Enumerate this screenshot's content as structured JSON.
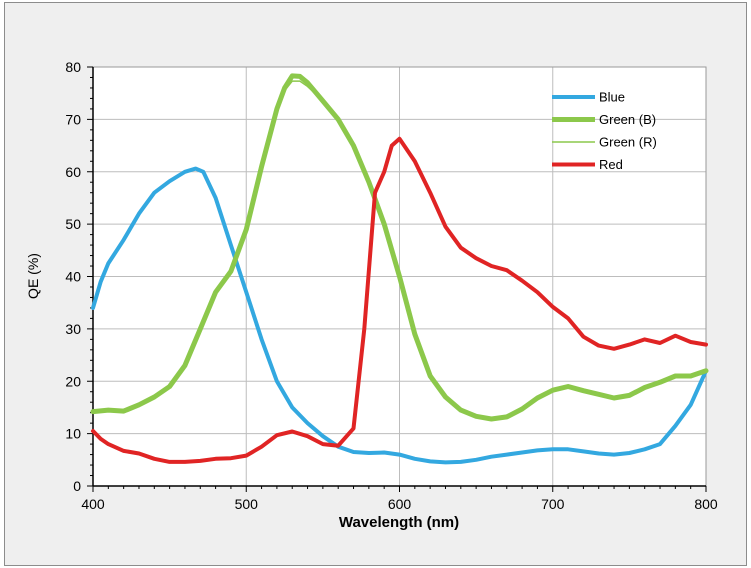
{
  "chart_data": {
    "type": "line",
    "title": "",
    "xlabel": "Wavelength (nm)",
    "ylabel": "QE (%)",
    "xlim": [
      400,
      800
    ],
    "ylim": [
      0,
      80
    ],
    "xticks": [
      400,
      500,
      600,
      700,
      800
    ],
    "yticks": [
      0,
      10,
      20,
      30,
      40,
      50,
      60,
      70,
      80
    ],
    "grid": true,
    "legend_position": "top-right",
    "series": [
      {
        "name": "Blue",
        "color": "#33a8e0",
        "width": 4,
        "points": [
          [
            400,
            34
          ],
          [
            405,
            39
          ],
          [
            410,
            42.5
          ],
          [
            420,
            47
          ],
          [
            430,
            52
          ],
          [
            440,
            56
          ],
          [
            450,
            58.2
          ],
          [
            460,
            60
          ],
          [
            467,
            60.6
          ],
          [
            472,
            60
          ],
          [
            480,
            55
          ],
          [
            490,
            46
          ],
          [
            500,
            37
          ],
          [
            510,
            28
          ],
          [
            520,
            20
          ],
          [
            530,
            15
          ],
          [
            540,
            12
          ],
          [
            550,
            9.5
          ],
          [
            560,
            7.5
          ],
          [
            570,
            6.5
          ],
          [
            580,
            6.3
          ],
          [
            590,
            6.4
          ],
          [
            600,
            6.0
          ],
          [
            610,
            5.2
          ],
          [
            620,
            4.7
          ],
          [
            630,
            4.5
          ],
          [
            640,
            4.6
          ],
          [
            650,
            5.0
          ],
          [
            660,
            5.6
          ],
          [
            670,
            6.0
          ],
          [
            680,
            6.4
          ],
          [
            690,
            6.8
          ],
          [
            700,
            7.0
          ],
          [
            710,
            7.0
          ],
          [
            720,
            6.6
          ],
          [
            730,
            6.2
          ],
          [
            740,
            6.0
          ],
          [
            750,
            6.3
          ],
          [
            760,
            7.0
          ],
          [
            770,
            8.0
          ],
          [
            780,
            11.5
          ],
          [
            790,
            15.5
          ],
          [
            800,
            22
          ]
        ]
      },
      {
        "name": "Green (B)",
        "color": "#8cc84b",
        "width": 5,
        "points": [
          [
            400,
            14.2
          ],
          [
            410,
            14.5
          ],
          [
            420,
            14.3
          ],
          [
            430,
            15.5
          ],
          [
            440,
            17
          ],
          [
            450,
            19
          ],
          [
            460,
            23
          ],
          [
            470,
            30
          ],
          [
            480,
            37
          ],
          [
            490,
            41
          ],
          [
            500,
            49
          ],
          [
            510,
            61
          ],
          [
            520,
            72
          ],
          [
            525,
            76
          ],
          [
            530,
            78.3
          ],
          [
            535,
            78.2
          ],
          [
            540,
            77
          ],
          [
            550,
            73.5
          ],
          [
            560,
            70
          ],
          [
            570,
            65
          ],
          [
            580,
            58
          ],
          [
            590,
            50
          ],
          [
            600,
            40
          ],
          [
            610,
            29
          ],
          [
            620,
            21
          ],
          [
            630,
            17
          ],
          [
            640,
            14.5
          ],
          [
            650,
            13.3
          ],
          [
            660,
            12.8
          ],
          [
            670,
            13.2
          ],
          [
            680,
            14.7
          ],
          [
            690,
            16.8
          ],
          [
            700,
            18.3
          ],
          [
            710,
            19
          ],
          [
            720,
            18.2
          ],
          [
            730,
            17.5
          ],
          [
            740,
            16.8
          ],
          [
            750,
            17.3
          ],
          [
            760,
            18.8
          ],
          [
            770,
            19.8
          ],
          [
            780,
            21
          ],
          [
            790,
            21
          ],
          [
            800,
            22
          ]
        ]
      },
      {
        "name": "Green (R)",
        "color": "#8cc84b",
        "width": 1.5,
        "points": [
          [
            400,
            14.2
          ],
          [
            410,
            14.5
          ],
          [
            420,
            14.3
          ],
          [
            430,
            15.5
          ],
          [
            440,
            17
          ],
          [
            450,
            19
          ],
          [
            460,
            23
          ],
          [
            470,
            30
          ],
          [
            480,
            37
          ],
          [
            490,
            41
          ],
          [
            500,
            49
          ],
          [
            510,
            61
          ],
          [
            520,
            72
          ],
          [
            525,
            75.5
          ],
          [
            530,
            77.3
          ],
          [
            535,
            77.3
          ],
          [
            540,
            76.3
          ],
          [
            550,
            73.5
          ],
          [
            560,
            70
          ],
          [
            570,
            65
          ],
          [
            580,
            58
          ],
          [
            590,
            50
          ],
          [
            600,
            40
          ],
          [
            610,
            29
          ],
          [
            620,
            21
          ],
          [
            630,
            17
          ],
          [
            640,
            14.5
          ],
          [
            650,
            13.3
          ],
          [
            660,
            12.8
          ],
          [
            670,
            13.2
          ],
          [
            680,
            14.7
          ],
          [
            690,
            16.8
          ],
          [
            700,
            18.3
          ],
          [
            710,
            19
          ],
          [
            720,
            18.2
          ],
          [
            730,
            17.5
          ],
          [
            740,
            16.8
          ],
          [
            750,
            17.3
          ],
          [
            760,
            18.8
          ],
          [
            770,
            19.8
          ],
          [
            780,
            21
          ],
          [
            790,
            21
          ],
          [
            800,
            22
          ]
        ]
      },
      {
        "name": "Red",
        "color": "#e02424",
        "width": 4,
        "points": [
          [
            400,
            10.5
          ],
          [
            405,
            9
          ],
          [
            410,
            8
          ],
          [
            420,
            6.7
          ],
          [
            430,
            6.2
          ],
          [
            440,
            5.2
          ],
          [
            450,
            4.6
          ],
          [
            460,
            4.6
          ],
          [
            470,
            4.8
          ],
          [
            480,
            5.2
          ],
          [
            490,
            5.3
          ],
          [
            500,
            5.8
          ],
          [
            510,
            7.5
          ],
          [
            520,
            9.7
          ],
          [
            530,
            10.4
          ],
          [
            540,
            9.5
          ],
          [
            550,
            8
          ],
          [
            560,
            7.7
          ],
          [
            570,
            11
          ],
          [
            577,
            30
          ],
          [
            584,
            56
          ],
          [
            590,
            60
          ],
          [
            595,
            65
          ],
          [
            600,
            66.3
          ],
          [
            610,
            62
          ],
          [
            620,
            56
          ],
          [
            630,
            49.5
          ],
          [
            640,
            45.5
          ],
          [
            650,
            43.5
          ],
          [
            660,
            42
          ],
          [
            670,
            41.2
          ],
          [
            680,
            39.2
          ],
          [
            690,
            37
          ],
          [
            700,
            34.2
          ],
          [
            710,
            32
          ],
          [
            720,
            28.5
          ],
          [
            730,
            26.8
          ],
          [
            740,
            26.2
          ],
          [
            750,
            27
          ],
          [
            760,
            28
          ],
          [
            770,
            27.3
          ],
          [
            780,
            28.7
          ],
          [
            790,
            27.5
          ],
          [
            800,
            27
          ]
        ]
      }
    ]
  }
}
